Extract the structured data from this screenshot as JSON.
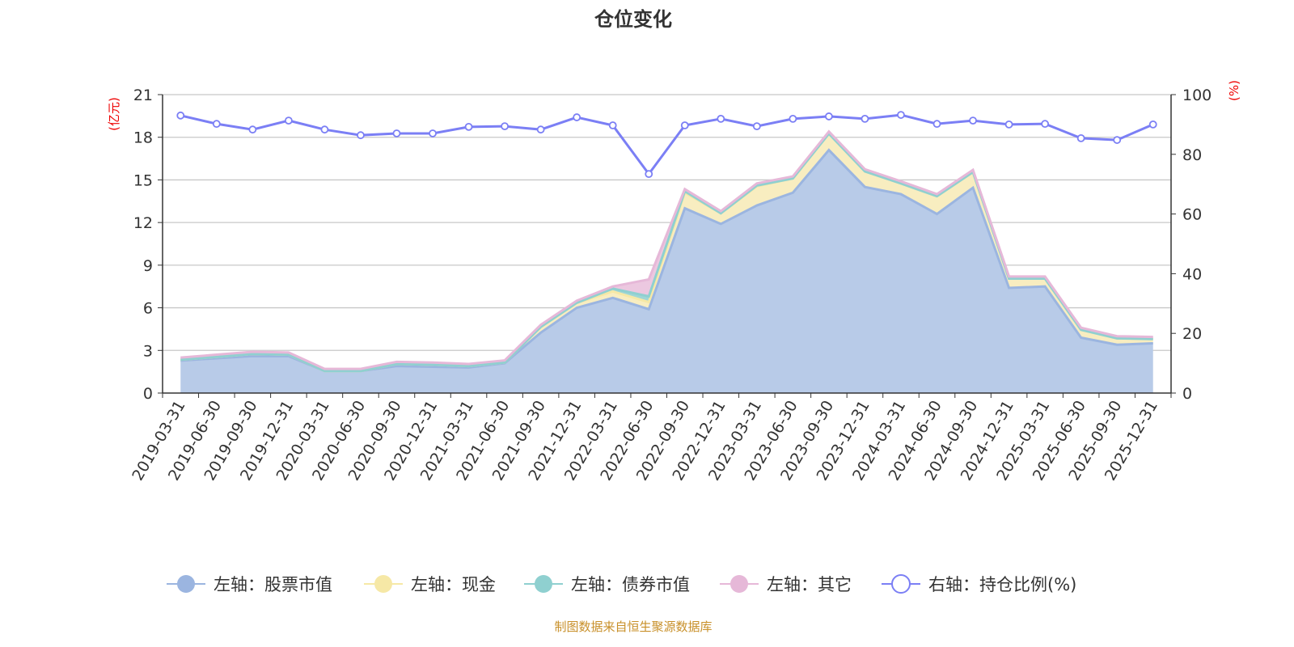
{
  "chart_data": {
    "type": "area",
    "title": "仓位变化",
    "left_axis_label": "(亿元)",
    "right_axis_label": "(%)",
    "ylim_left": [
      0,
      21
    ],
    "yticks_left": [
      0,
      3,
      6,
      9,
      12,
      15,
      18,
      21
    ],
    "ylim_right": [
      0,
      100
    ],
    "yticks_right": [
      0,
      20,
      40,
      60,
      80,
      100
    ],
    "grid": true,
    "legend_position": "bottom",
    "categories": [
      "2019-03-31",
      "2019-06-30",
      "2019-09-30",
      "2019-12-31",
      "2020-03-31",
      "2020-06-30",
      "2020-09-30",
      "2020-12-31",
      "2021-03-31",
      "2021-06-30",
      "2021-09-30",
      "2021-12-31",
      "2022-03-31",
      "2022-06-30",
      "2022-09-30",
      "2022-12-31",
      "2023-03-31",
      "2023-06-30",
      "2023-09-30",
      "2023-12-31",
      "2024-03-31",
      "2024-06-30",
      "2024-09-30",
      "2024-12-31",
      "2025-03-31",
      "2025-06-30",
      "2025-09-30",
      "2025-12-31"
    ],
    "series": [
      {
        "name": "左轴：股票市值",
        "axis": "left",
        "stacked": true,
        "color": "#9bb5e0",
        "fill": "#b8cbe8",
        "values": [
          2.28,
          2.45,
          2.6,
          2.6,
          1.55,
          1.55,
          1.9,
          1.85,
          1.8,
          2.1,
          4.25,
          6.0,
          6.7,
          5.9,
          13.0,
          11.9,
          13.2,
          14.1,
          17.1,
          14.5,
          14.0,
          12.6,
          14.45,
          7.4,
          7.5,
          3.9,
          3.4,
          3.5
        ]
      },
      {
        "name": "左轴：现金",
        "axis": "left",
        "stacked": true,
        "color": "#f6e8a6",
        "fill": "#f8edc0",
        "values": [
          0.07,
          0.1,
          0.15,
          0.1,
          0.0,
          0.0,
          0.15,
          0.15,
          0.1,
          0.05,
          0.4,
          0.35,
          0.45,
          0.5,
          1.1,
          0.75,
          1.35,
          1.0,
          1.15,
          1.1,
          0.75,
          1.25,
          1.1,
          0.65,
          0.55,
          0.55,
          0.45,
          0.3
        ]
      },
      {
        "name": "左轴：债券市值",
        "axis": "left",
        "stacked": true,
        "color": "#8fd0d0",
        "fill": "#9fd6d6",
        "values": [
          0,
          0,
          0,
          0,
          0,
          0,
          0,
          0,
          0,
          0,
          0,
          0,
          0.2,
          0.4,
          0.1,
          0,
          0.05,
          0,
          0,
          0,
          0,
          0,
          0,
          0,
          0,
          0,
          0,
          0
        ]
      },
      {
        "name": "左轴：其它",
        "axis": "left",
        "stacked": true,
        "color": "#e6b8d8",
        "fill": "#ecc8e0",
        "values": [
          0.15,
          0.15,
          0.15,
          0.15,
          0.15,
          0.15,
          0.15,
          0.15,
          0.15,
          0.15,
          0.15,
          0.15,
          0.15,
          1.2,
          0.15,
          0.15,
          0.15,
          0.15,
          0.15,
          0.15,
          0.15,
          0.15,
          0.15,
          0.15,
          0.15,
          0.15,
          0.15,
          0.15
        ]
      },
      {
        "name": "右轴：持仓比例(%)",
        "axis": "right",
        "type": "line",
        "color": "#7b7ff5",
        "values": [
          93.0,
          90.2,
          88.3,
          91.3,
          88.3,
          86.4,
          87.0,
          87.0,
          89.2,
          89.4,
          88.3,
          92.4,
          89.7,
          73.4,
          89.7,
          91.9,
          89.4,
          91.9,
          92.7,
          91.9,
          93.2,
          90.2,
          91.3,
          90.0,
          90.2,
          85.4,
          84.8,
          90.0
        ]
      }
    ]
  },
  "footer": "制图数据来自恒生聚源数据库"
}
